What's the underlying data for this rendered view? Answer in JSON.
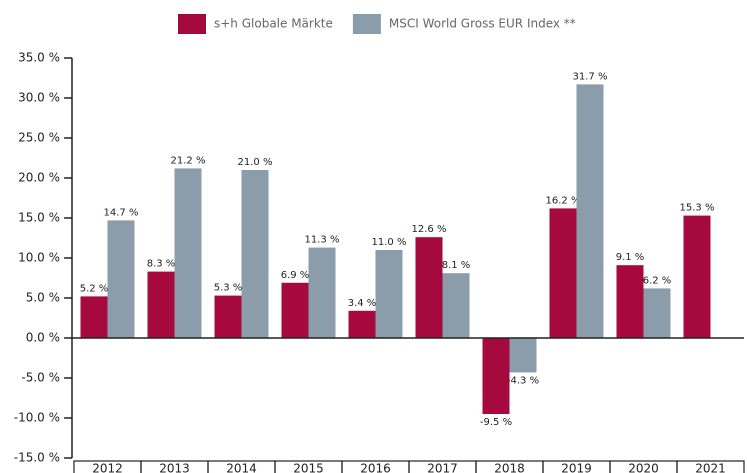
{
  "chart_data": {
    "type": "bar",
    "categories": [
      "2012",
      "2013",
      "2014",
      "2015",
      "2016",
      "2017",
      "2018",
      "2019",
      "2020",
      "2021"
    ],
    "series": [
      {
        "name": "s+h Globale Märkte",
        "color": "#a6093d",
        "values": [
          5.2,
          8.3,
          5.3,
          6.9,
          3.4,
          12.6,
          -9.5,
          16.2,
          9.1,
          15.3
        ],
        "value_labels": [
          "5.2 %",
          "8.3 %",
          "5.3 %",
          "6.9 %",
          "3.4 %",
          "12.6 %",
          "-9.5 %",
          "16.2 %",
          "9.1 %",
          "15.3 %"
        ]
      },
      {
        "name": "MSCI World Gross EUR Index **",
        "color": "#8b9cab",
        "values": [
          14.7,
          21.2,
          21.0,
          11.3,
          11.0,
          8.1,
          -4.3,
          31.7,
          6.2,
          null
        ],
        "value_labels": [
          "14.7 %",
          "21.2 %",
          "21.0 %",
          "11.3 %",
          "11.0 %",
          "8.1 %",
          "-4.3 %",
          "31.7 %",
          "6.2 %",
          null
        ]
      }
    ],
    "ylim": [
      -15,
      35
    ],
    "yticks": [
      {
        "value": 35,
        "label": "35.0 %"
      },
      {
        "value": 30,
        "label": "30.0 %"
      },
      {
        "value": 25,
        "label": "25.0 %"
      },
      {
        "value": 20,
        "label": "20.0 %"
      },
      {
        "value": 15,
        "label": "15.0 %"
      },
      {
        "value": 10,
        "label": "10.0 %"
      },
      {
        "value": 5,
        "label": "5.0 %"
      },
      {
        "value": 0,
        "label": "0.0 %"
      },
      {
        "value": -5,
        "label": "-5.0 %"
      },
      {
        "value": -10,
        "label": "-10.0 %"
      },
      {
        "value": -15,
        "label": "-15.0 %"
      }
    ],
    "grid": false,
    "legend": "top"
  }
}
